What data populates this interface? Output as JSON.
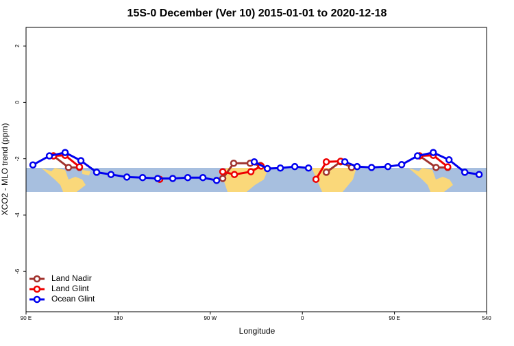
{
  "chart_data": {
    "type": "line",
    "title": "15S-0 December (Ver 10)   2015-01-01 to 2020-12-18",
    "x_label": "Longitude",
    "y_label": "XCO2 - MLO trend (ppm)",
    "xlim": [
      90,
      540
    ],
    "ylim": [
      -7.43,
      2.66
    ],
    "xticks": [
      {
        "value": 90,
        "label": "90 E"
      },
      180,
      {
        "value": 270,
        "label": "90 W"
      },
      {
        "value": 360,
        "label": "0"
      },
      {
        "value": 450,
        "label": "90 E"
      },
      540
    ],
    "yticks": [
      -6,
      -4,
      -2,
      0,
      2
    ],
    "legend": "bottom-left",
    "series": [
      {
        "name": "Land Nadir",
        "color": "#a0322d",
        "x": [
          116.8,
          131.5,
          142.2,
          null,
          282.2,
          292.9,
          309.0,
          319.0,
          null,
          383.4,
          397.4,
          408.1,
          null,
          474.5,
          490.6,
          502.0
        ],
        "values": [
          -1.9,
          -2.31,
          -2.31,
          null,
          -2.7,
          -2.16,
          -2.16,
          -2.24,
          null,
          -2.48,
          -2.11,
          -2.31,
          null,
          -1.9,
          -2.31,
          -2.31
        ]
      },
      {
        "name": "Land Glint",
        "color": "#ee0000",
        "x": [
          116.8,
          128.2,
          142.2,
          null,
          220.6,
          null,
          282.2,
          293.6,
          309.7,
          319.7,
          null,
          373.3,
          383.4,
          397.4,
          null,
          474.5,
          487.9,
          502.0
        ],
        "values": [
          -1.9,
          -1.88,
          -2.29,
          null,
          -2.73,
          null,
          -2.46,
          -2.56,
          -2.46,
          -2.26,
          null,
          -2.73,
          -2.11,
          -2.09,
          null,
          -1.9,
          -1.88,
          -2.29
        ]
      },
      {
        "name": "Ocean Glint",
        "color": "#0000ee",
        "x": [
          96.7,
          112.8,
          128.2,
          143.6,
          159.0,
          173.0,
          188.5,
          203.9,
          218.6,
          233.3,
          248.0,
          262.8,
          276.2,
          null,
          313.0,
          325.8,
          338.5,
          352.6,
          366.0,
          null,
          401.5,
          413.5,
          427.6,
          443.6,
          457.0,
          472.5,
          487.9,
          503.3,
          518.7,
          532.7
        ],
        "values": [
          -2.22,
          -1.9,
          -1.78,
          -2.07,
          -2.48,
          -2.56,
          -2.65,
          -2.67,
          -2.7,
          -2.7,
          -2.67,
          -2.67,
          -2.77,
          null,
          -2.11,
          -2.35,
          -2.33,
          -2.28,
          -2.33,
          null,
          -2.11,
          -2.28,
          -2.31,
          -2.28,
          -2.21,
          -1.9,
          -1.78,
          -2.04,
          -2.48,
          -2.56
        ]
      }
    ]
  }
}
